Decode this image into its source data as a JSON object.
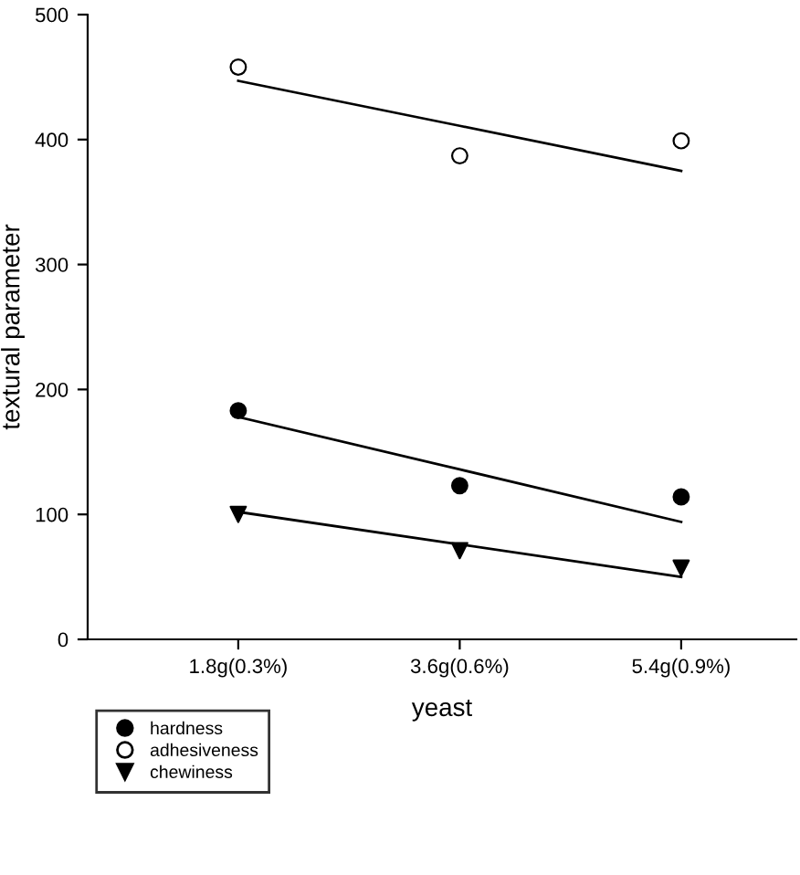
{
  "chart_data": {
    "type": "scatter",
    "xlabel": "yeast",
    "ylabel": "textural parameter",
    "categories": [
      "1.8g(0.3%)",
      "3.6g(0.6%)",
      "5.4g(0.9%)"
    ],
    "ylim": [
      0,
      500
    ],
    "yticks": [
      0,
      100,
      200,
      300,
      400,
      500
    ],
    "grid": false,
    "legend": "bottom left",
    "series": [
      {
        "name": "hardness",
        "marker": "circle",
        "color": "#000000",
        "values": [
          183,
          123,
          114
        ]
      },
      {
        "name": "adhesiveness",
        "marker": "circle",
        "color": "#ffffff",
        "values": [
          458,
          387,
          399
        ]
      },
      {
        "name": "chewiness",
        "marker": "triangle",
        "color": "#000000",
        "values": [
          100,
          71,
          57
        ]
      },
      {
        "type": "line",
        "marker": "none",
        "line_style": "solid",
        "color": "#000000",
        "values": [
          178,
          136,
          94
        ]
      },
      {
        "type": "line",
        "marker": "none",
        "line_style": "solid",
        "color": "#000000",
        "values": [
          447,
          411,
          375
        ]
      },
      {
        "type": "line",
        "marker": "none",
        "line_style": "solid",
        "color": "#000000",
        "values": [
          102,
          76,
          50
        ]
      }
    ]
  }
}
